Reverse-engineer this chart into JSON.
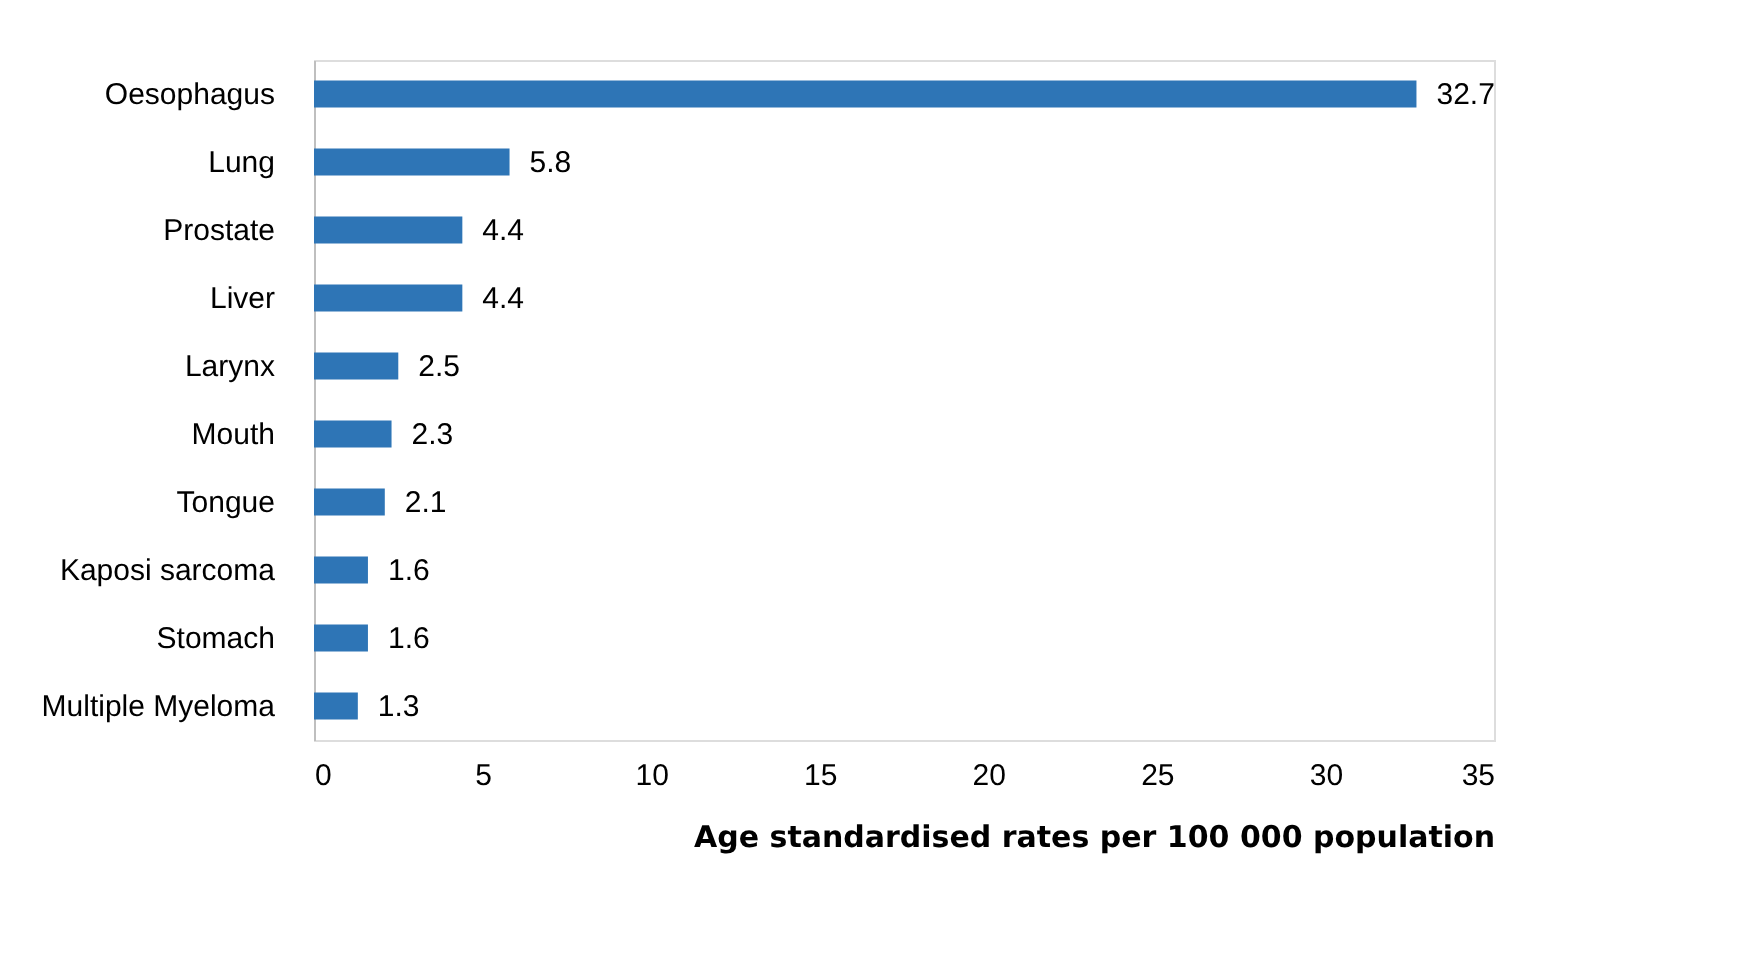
{
  "chart_data": {
    "type": "bar",
    "orientation": "horizontal",
    "xlabel": "Age standardised rates per 100 000 population",
    "categories": [
      "Oesophagus",
      "Lung",
      "Prostate",
      "Liver",
      "Larynx",
      "Mouth",
      "Tongue",
      "Kaposi sarcoma",
      "Stomach",
      "Multiple Myeloma"
    ],
    "values": [
      32.7,
      5.8,
      4.4,
      4.4,
      2.5,
      2.3,
      2.1,
      1.6,
      1.6,
      1.3
    ],
    "color": "#2e75b6",
    "xlim": [
      0,
      35
    ],
    "xticks": [
      0,
      5,
      10,
      15,
      20,
      25,
      30,
      35
    ],
    "data_labels": true,
    "grid": false,
    "legend": false
  }
}
